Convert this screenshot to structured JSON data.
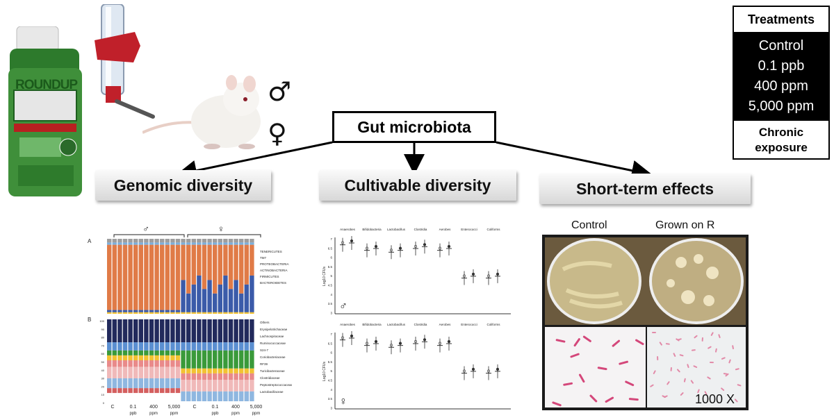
{
  "center": {
    "label": "Gut microbiota"
  },
  "sections": [
    {
      "label": "Genomic diversity"
    },
    {
      "label": "Cultivable diversity"
    },
    {
      "label": "Short-term effects"
    }
  ],
  "treatments": {
    "title": "Treatments",
    "items": [
      "Control",
      "0.1 ppb",
      "400 ppm",
      "5,000 ppm"
    ],
    "footer": "Chronic exposure"
  },
  "sexes": {
    "male": "♂",
    "female": "♀"
  },
  "product": {
    "brand": "ROUNDUP"
  },
  "genomic": {
    "panel_a": "A",
    "panel_b": "B",
    "legend_a": [
      "TENERICUTES",
      "TM7",
      "PROTEOBACTERIA",
      "ACTINOBACTERIA",
      "FIRMICUTES",
      "BACTEROIDETES"
    ],
    "legend_b": [
      "Others",
      "Erysipelotrichaceae",
      "Lachnospiraceae",
      "Ruminococcaceae",
      "S24-7",
      "Coriobacteriaceae",
      "RF39",
      "Turicibacteraceae",
      "Clostridiaceae",
      "Peptostreptococcaceae",
      "Lactobacillaceae"
    ],
    "xlabels": [
      {
        "top": "C",
        "bottom": ""
      },
      {
        "top": "0.1",
        "bottom": "ppb"
      },
      {
        "top": "400",
        "bottom": "ppm"
      },
      {
        "top": "5,000",
        "bottom": "ppm"
      },
      {
        "top": "C",
        "bottom": ""
      },
      {
        "top": "0.1",
        "bottom": "ppb"
      },
      {
        "top": "400",
        "bottom": "ppm"
      },
      {
        "top": "5,000",
        "bottom": "ppm"
      }
    ],
    "yticks": [
      "100",
      "90",
      "80",
      "70",
      "60",
      "50",
      "40",
      "30",
      "20",
      "10",
      "0"
    ]
  },
  "cultivable": {
    "groups": [
      "Anaerobes",
      "Bifidobacteria",
      "Lactobacillus",
      "Clostridia",
      "Aerobes",
      "Enterococci",
      "Coliforms"
    ],
    "ylabel": "Log10 CFUs",
    "yticks": [
      "7",
      "6.5",
      "6",
      "5.5",
      "5",
      "4.5",
      "4",
      "3.5",
      "3"
    ]
  },
  "plates": {
    "control": "Control",
    "grown": "Grown on R",
    "magnification": "1000 X"
  },
  "colors": {
    "firmicutes": "#e07b47",
    "bacteroidetes": "#3b5ba9",
    "proteobacteria": "#f2c232",
    "actinobacteria": "#7bb0dd",
    "tenericutes": "#9e9e9e",
    "roundup_green": "#3f8f3a",
    "feeder_red": "#c0202a",
    "gram_stain": "#d4477a"
  }
}
